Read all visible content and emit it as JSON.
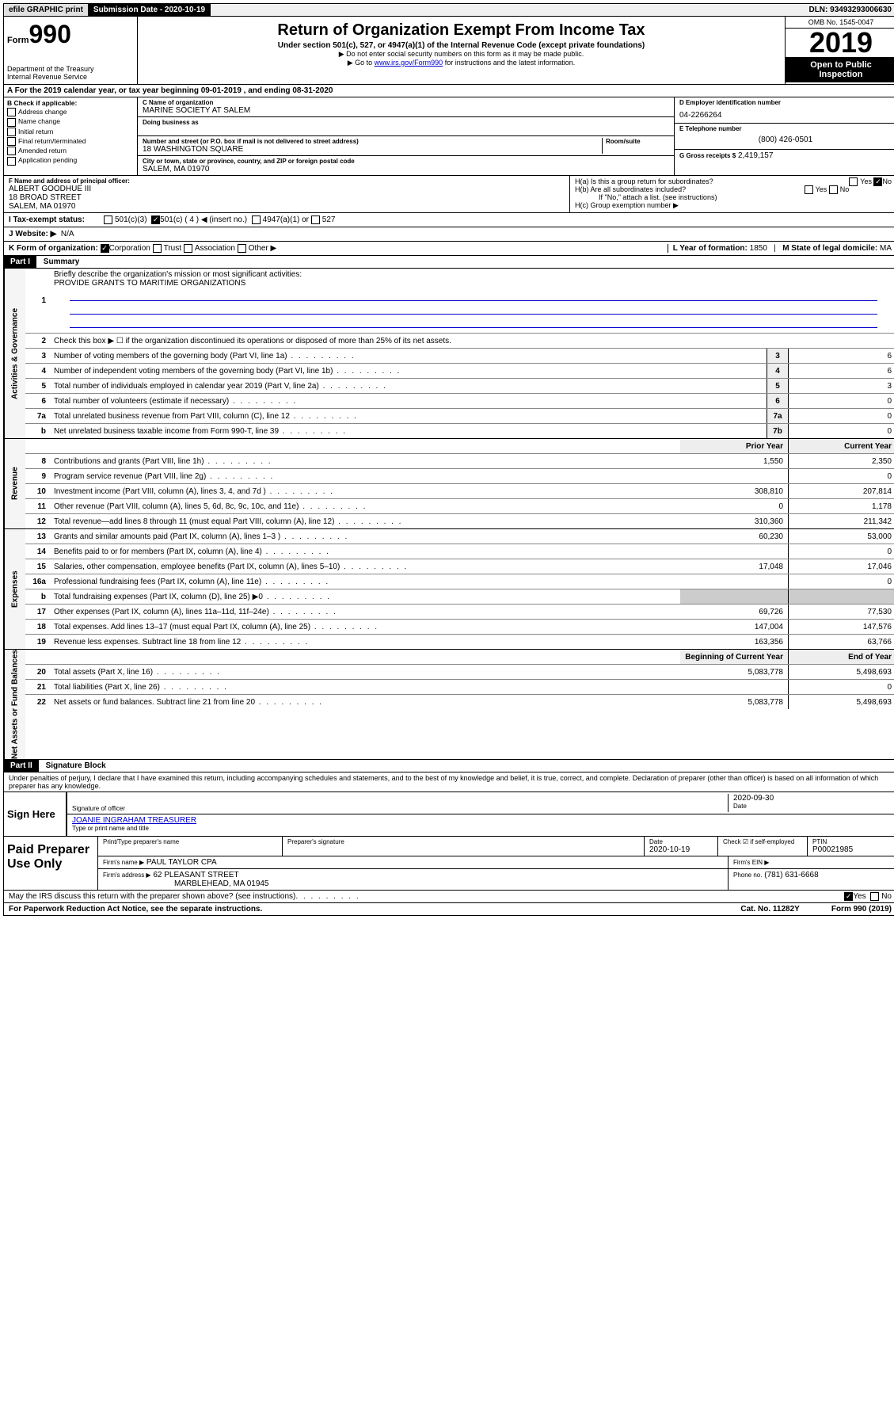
{
  "top": {
    "efile": "efile GRAPHIC print",
    "submission_label": "Submission Date - 2020-10-19",
    "dln": "DLN: 93493293006630"
  },
  "header": {
    "form_word": "Form",
    "form_number": "990",
    "dept": "Department of the Treasury",
    "irs": "Internal Revenue Service",
    "title": "Return of Organization Exempt From Income Tax",
    "subtitle": "Under section 501(c), 527, or 4947(a)(1) of the Internal Revenue Code (except private foundations)",
    "note1": "▶ Do not enter social security numbers on this form as it may be made public.",
    "note2_prefix": "▶ Go to ",
    "note2_link": "www.irs.gov/Form990",
    "note2_suffix": " for instructions and the latest information.",
    "omb": "OMB No. 1545-0047",
    "year": "2019",
    "open": "Open to Public Inspection"
  },
  "sectionA": "A For the 2019 calendar year, or tax year beginning 09-01-2019    , and ending 08-31-2020",
  "boxB": {
    "header": "B Check if applicable:",
    "opts": [
      "Address change",
      "Name change",
      "Initial return",
      "Final return/terminated",
      "Amended return",
      "Application pending"
    ]
  },
  "boxC": {
    "name_label": "C Name of organization",
    "name": "MARINE SOCIETY AT SALEM",
    "dba_label": "Doing business as",
    "addr_label": "Number and street (or P.O. box if mail is not delivered to street address)",
    "room_label": "Room/suite",
    "addr": "18 WASHINGTON SQUARE",
    "city_label": "City or town, state or province, country, and ZIP or foreign postal code",
    "city": "SALEM, MA  01970"
  },
  "boxD": {
    "label": "D Employer identification number",
    "value": "04-2266264"
  },
  "boxE": {
    "label": "E Telephone number",
    "value": "(800) 426-0501"
  },
  "boxG": {
    "label": "G Gross receipts $",
    "value": "2,419,157"
  },
  "boxF": {
    "label": "F  Name and address of principal officer:",
    "line1": "ALBERT GOODHUE III",
    "line2": "18 BROAD STREET",
    "line3": "SALEM, MA  01970"
  },
  "boxH": {
    "ha": "H(a)  Is this a group return for subordinates?",
    "hb": "H(b)  Are all subordinates included?",
    "hnote": "If \"No,\" attach a list. (see instructions)",
    "hc": "H(c)  Group exemption number ▶",
    "yes": "Yes",
    "no": "No"
  },
  "boxI": {
    "label": "I   Tax-exempt status:",
    "o1": "501(c)(3)",
    "o2": "501(c) ( 4 ) ◀ (insert no.)",
    "o3": "4947(a)(1) or",
    "o4": "527"
  },
  "boxJ": {
    "label": "J   Website: ▶",
    "value": "N/A"
  },
  "boxK": {
    "label": "K Form of organization:",
    "o1": "Corporation",
    "o2": "Trust",
    "o3": "Association",
    "o4": "Other ▶"
  },
  "boxL": {
    "label": "L Year of formation:",
    "value": "1850"
  },
  "boxM": {
    "label": "M State of legal domicile:",
    "value": "MA"
  },
  "part1": {
    "header": "Part I",
    "title": "Summary",
    "l1": "Briefly describe the organization's mission or most significant activities:",
    "mission": "PROVIDE GRANTS TO MARITIME ORGANIZATIONS",
    "l2": "Check this box ▶ ☐  if the organization discontinued its operations or disposed of more than 25% of its net assets.",
    "lines_gov": [
      {
        "n": "3",
        "d": "Number of voting members of the governing body (Part VI, line 1a)",
        "b": "3",
        "v": "6"
      },
      {
        "n": "4",
        "d": "Number of independent voting members of the governing body (Part VI, line 1b)",
        "b": "4",
        "v": "6"
      },
      {
        "n": "5",
        "d": "Total number of individuals employed in calendar year 2019 (Part V, line 2a)",
        "b": "5",
        "v": "3"
      },
      {
        "n": "6",
        "d": "Total number of volunteers (estimate if necessary)",
        "b": "6",
        "v": "0"
      },
      {
        "n": "7a",
        "d": "Total unrelated business revenue from Part VIII, column (C), line 12",
        "b": "7a",
        "v": "0"
      },
      {
        "n": "b",
        "d": "Net unrelated business taxable income from Form 990-T, line 39",
        "b": "7b",
        "v": "0"
      }
    ],
    "col_prior": "Prior Year",
    "col_current": "Current Year",
    "lines_rev": [
      {
        "n": "8",
        "d": "Contributions and grants (Part VIII, line 1h)",
        "p": "1,550",
        "c": "2,350"
      },
      {
        "n": "9",
        "d": "Program service revenue (Part VIII, line 2g)",
        "p": "",
        "c": "0"
      },
      {
        "n": "10",
        "d": "Investment income (Part VIII, column (A), lines 3, 4, and 7d )",
        "p": "308,810",
        "c": "207,814"
      },
      {
        "n": "11",
        "d": "Other revenue (Part VIII, column (A), lines 5, 6d, 8c, 9c, 10c, and 11e)",
        "p": "0",
        "c": "1,178"
      },
      {
        "n": "12",
        "d": "Total revenue—add lines 8 through 11 (must equal Part VIII, column (A), line 12)",
        "p": "310,360",
        "c": "211,342"
      }
    ],
    "lines_exp": [
      {
        "n": "13",
        "d": "Grants and similar amounts paid (Part IX, column (A), lines 1–3 )",
        "p": "60,230",
        "c": "53,000"
      },
      {
        "n": "14",
        "d": "Benefits paid to or for members (Part IX, column (A), line 4)",
        "p": "",
        "c": "0"
      },
      {
        "n": "15",
        "d": "Salaries, other compensation, employee benefits (Part IX, column (A), lines 5–10)",
        "p": "17,048",
        "c": "17,046"
      },
      {
        "n": "16a",
        "d": "Professional fundraising fees (Part IX, column (A), line 11e)",
        "p": "",
        "c": "0"
      },
      {
        "n": "b",
        "d": "Total fundraising expenses (Part IX, column (D), line 25) ▶0",
        "p": "",
        "c": "",
        "shaded": true
      },
      {
        "n": "17",
        "d": "Other expenses (Part IX, column (A), lines 11a–11d, 11f–24e)",
        "p": "69,726",
        "c": "77,530"
      },
      {
        "n": "18",
        "d": "Total expenses. Add lines 13–17 (must equal Part IX, column (A), line 25)",
        "p": "147,004",
        "c": "147,576"
      },
      {
        "n": "19",
        "d": "Revenue less expenses. Subtract line 18 from line 12",
        "p": "163,356",
        "c": "63,766"
      }
    ],
    "col_beg": "Beginning of Current Year",
    "col_end": "End of Year",
    "lines_net": [
      {
        "n": "20",
        "d": "Total assets (Part X, line 16)",
        "p": "5,083,778",
        "c": "5,498,693"
      },
      {
        "n": "21",
        "d": "Total liabilities (Part X, line 26)",
        "p": "",
        "c": "0"
      },
      {
        "n": "22",
        "d": "Net assets or fund balances. Subtract line 21 from line 20",
        "p": "5,083,778",
        "c": "5,498,693"
      }
    ]
  },
  "part2": {
    "header": "Part II",
    "title": "Signature Block",
    "perjury": "Under penalties of perjury, I declare that I have examined this return, including accompanying schedules and statements, and to the best of my knowledge and belief, it is true, correct, and complete. Declaration of preparer (other than officer) is based on all information of which preparer has any knowledge."
  },
  "sign": {
    "left": "Sign Here",
    "sig_label": "Signature of officer",
    "date": "2020-09-30",
    "date_label": "Date",
    "name": "JOANIE INGRAHAM  TREASURER",
    "name_label": "Type or print name and title"
  },
  "paid": {
    "left": "Paid Preparer Use Only",
    "h1": "Print/Type preparer's name",
    "h2": "Preparer's signature",
    "h3": "Date",
    "h3v": "2020-10-19",
    "h4": "Check ☑ if self-employed",
    "h5": "PTIN",
    "h5v": "P00021985",
    "firm_label": "Firm's name    ▶",
    "firm": "PAUL TAYLOR CPA",
    "ein_label": "Firm's EIN ▶",
    "addr_label": "Firm's address ▶",
    "addr1": "62 PLEASANT STREET",
    "addr2": "MARBLEHEAD, MA  01945",
    "phone_label": "Phone no.",
    "phone": "(781) 631-6668"
  },
  "footer": {
    "discuss": "May the IRS discuss this return with the preparer shown above? (see instructions)",
    "yes": "Yes",
    "no": "No",
    "pra": "For Paperwork Reduction Act Notice, see the separate instructions.",
    "cat": "Cat. No. 11282Y",
    "form": "Form 990 (2019)"
  },
  "side_labels": {
    "gov": "Activities & Governance",
    "rev": "Revenue",
    "exp": "Expenses",
    "net": "Net Assets or Fund Balances"
  }
}
